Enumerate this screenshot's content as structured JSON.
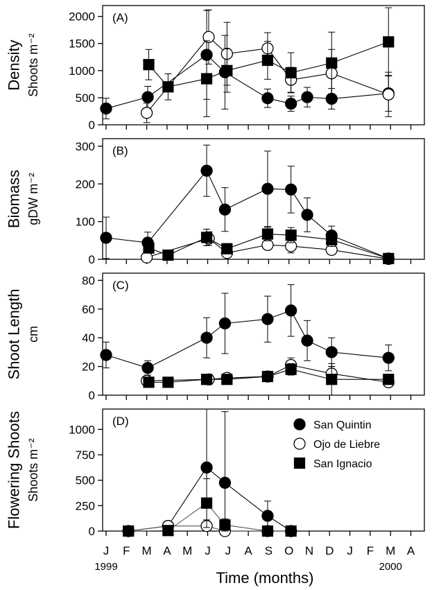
{
  "figure": {
    "xlabel": "Time (months)",
    "months": [
      "J",
      "F",
      "M",
      "A",
      "M",
      "J",
      "J",
      "A",
      "S",
      "O",
      "N",
      "D",
      "J",
      "F",
      "M",
      "A"
    ],
    "year_labels": [
      {
        "month_index": 0,
        "label": "1999"
      },
      {
        "month_index": 14,
        "label": "2000"
      }
    ],
    "legend": [
      {
        "label": "San Quintin",
        "marker": "filled-circle"
      },
      {
        "label": "Ojo de Liebre",
        "marker": "open-circle"
      },
      {
        "label": "San Ignacio",
        "marker": "filled-square"
      }
    ]
  },
  "chart_data": [
    {
      "type": "line",
      "panel_label": "(A)",
      "ylabel": "Density",
      "yunit": "Shoots m⁻²",
      "ylim": [
        0,
        2200
      ],
      "yticks": [
        0,
        500,
        1000,
        1500,
        2000
      ],
      "series": [
        {
          "name": "San Quintin",
          "points": [
            {
              "x": 0.0,
              "y": 300,
              "err": 190
            },
            {
              "x": 2.05,
              "y": 510,
              "err": 200
            },
            {
              "x": 4.95,
              "y": 1290,
              "err": 820
            },
            {
              "x": 5.85,
              "y": 970,
              "err": 680
            },
            {
              "x": 7.95,
              "y": 490,
              "err": 170
            },
            {
              "x": 9.1,
              "y": 390,
              "err": 140
            },
            {
              "x": 9.9,
              "y": 510,
              "err": 180
            },
            {
              "x": 11.1,
              "y": 480,
              "err": 190
            },
            {
              "x": 13.9,
              "y": 580,
              "err": 330
            }
          ]
        },
        {
          "name": "Ojo de Liebre",
          "points": [
            {
              "x": 2.0,
              "y": 220,
              "err": 180
            },
            {
              "x": 5.05,
              "y": 1620,
              "err": 500
            },
            {
              "x": 5.95,
              "y": 1310,
              "err": 580
            },
            {
              "x": 7.95,
              "y": 1410,
              "err": 290
            },
            {
              "x": 9.1,
              "y": 830,
              "err": 230
            },
            {
              "x": 11.1,
              "y": 950,
              "err": 440
            },
            {
              "x": 13.9,
              "y": 560,
              "err": 410
            }
          ]
        },
        {
          "name": "San Ignacio",
          "points": [
            {
              "x": 2.1,
              "y": 1110,
              "err": 280
            },
            {
              "x": 3.05,
              "y": 700,
              "err": 240
            },
            {
              "x": 4.95,
              "y": 850,
              "err": 700
            },
            {
              "x": 5.95,
              "y": 1000,
              "err": 400
            },
            {
              "x": 7.95,
              "y": 1190,
              "err": 350
            },
            {
              "x": 9.1,
              "y": 960,
              "err": 370
            },
            {
              "x": 11.1,
              "y": 1140,
              "err": 570
            },
            {
              "x": 13.9,
              "y": 1530,
              "err": 630
            }
          ]
        }
      ]
    },
    {
      "type": "line",
      "panel_label": "(B)",
      "ylabel": "Biomass",
      "yunit": "gDW m⁻²",
      "ylim": [
        0,
        320
      ],
      "yticks": [
        0,
        100,
        200,
        300
      ],
      "series": [
        {
          "name": "San Quintin",
          "points": [
            {
              "x": 0.0,
              "y": 57,
              "err": 55
            },
            {
              "x": 2.05,
              "y": 44,
              "err": 28
            },
            {
              "x": 4.95,
              "y": 235,
              "err": 68
            },
            {
              "x": 5.85,
              "y": 132,
              "err": 58
            },
            {
              "x": 7.95,
              "y": 187,
              "err": 100
            },
            {
              "x": 9.1,
              "y": 185,
              "err": 62
            },
            {
              "x": 9.9,
              "y": 118,
              "err": 45
            },
            {
              "x": 11.1,
              "y": 63,
              "err": 25
            },
            {
              "x": 13.9,
              "y": 2,
              "err": 4
            }
          ]
        },
        {
          "name": "Ojo de Liebre",
          "points": [
            {
              "x": 2.0,
              "y": 5,
              "err": 6
            },
            {
              "x": 5.05,
              "y": 55,
              "err": 18
            },
            {
              "x": 5.95,
              "y": 17,
              "err": 8
            },
            {
              "x": 7.95,
              "y": 38,
              "err": 12
            },
            {
              "x": 9.1,
              "y": 35,
              "err": 18
            },
            {
              "x": 11.1,
              "y": 25,
              "err": 10
            },
            {
              "x": 13.9,
              "y": 1,
              "err": 2
            }
          ]
        },
        {
          "name": "San Ignacio",
          "points": [
            {
              "x": 2.1,
              "y": 30,
              "err": 10
            },
            {
              "x": 3.05,
              "y": 11,
              "err": 4
            },
            {
              "x": 4.95,
              "y": 58,
              "err": 22
            },
            {
              "x": 5.95,
              "y": 28,
              "err": 10
            },
            {
              "x": 7.95,
              "y": 67,
              "err": 18
            },
            {
              "x": 9.1,
              "y": 64,
              "err": 20
            },
            {
              "x": 11.1,
              "y": 52,
              "err": 18
            },
            {
              "x": 13.9,
              "y": 2,
              "err": 3
            }
          ]
        }
      ]
    },
    {
      "type": "line",
      "panel_label": "(C)",
      "ylabel": "Shoot Length",
      "yunit": "cm",
      "ylim": [
        0,
        85
      ],
      "yticks": [
        0,
        20,
        40,
        60,
        80
      ],
      "series": [
        {
          "name": "San Quintin",
          "points": [
            {
              "x": 0.0,
              "y": 28,
              "err": 9
            },
            {
              "x": 2.05,
              "y": 19,
              "err": 5
            },
            {
              "x": 4.95,
              "y": 40,
              "err": 14
            },
            {
              "x": 5.85,
              "y": 50,
              "err": 21
            },
            {
              "x": 7.95,
              "y": 53,
              "err": 16
            },
            {
              "x": 9.1,
              "y": 59,
              "err": 18
            },
            {
              "x": 9.9,
              "y": 38,
              "err": 14
            },
            {
              "x": 11.1,
              "y": 30,
              "err": 10
            },
            {
              "x": 13.9,
              "y": 26,
              "err": 9
            }
          ]
        },
        {
          "name": "Ojo de Liebre",
          "points": [
            {
              "x": 2.0,
              "y": 10,
              "err": 2
            },
            {
              "x": 5.05,
              "y": 11,
              "err": 2
            },
            {
              "x": 5.95,
              "y": 12,
              "err": 2
            },
            {
              "x": 7.95,
              "y": 13,
              "err": 2
            },
            {
              "x": 9.1,
              "y": 21,
              "err": 5
            },
            {
              "x": 11.1,
              "y": 15,
              "err": 5
            },
            {
              "x": 13.9,
              "y": 9,
              "err": 2
            }
          ]
        },
        {
          "name": "San Ignacio",
          "points": [
            {
              "x": 2.1,
              "y": 9,
              "err": 2
            },
            {
              "x": 3.05,
              "y": 9,
              "err": 2
            },
            {
              "x": 4.95,
              "y": 11,
              "err": 2
            },
            {
              "x": 5.95,
              "y": 11,
              "err": 2
            },
            {
              "x": 7.95,
              "y": 13,
              "err": 2
            },
            {
              "x": 9.1,
              "y": 18,
              "err": 4
            },
            {
              "x": 11.1,
              "y": 11,
              "err": 11
            },
            {
              "x": 13.9,
              "y": 11,
              "err": 2
            }
          ]
        }
      ]
    },
    {
      "type": "line",
      "panel_label": "(D)",
      "ylabel": "Flowering Shoots",
      "yunit": "Shoots m⁻²",
      "ylim": [
        0,
        1200
      ],
      "yticks": [
        0,
        250,
        500,
        750,
        1000
      ],
      "series": [
        {
          "name": "San Quintin",
          "points": [
            {
              "x": 1.1,
              "y": 0,
              "err": 0
            },
            {
              "x": 3.05,
              "y": 50,
              "err": 20
            },
            {
              "x": 4.95,
              "y": 625,
              "err": 650
            },
            {
              "x": 5.85,
              "y": 475,
              "err": 700
            },
            {
              "x": 7.95,
              "y": 150,
              "err": 145
            },
            {
              "x": 9.1,
              "y": 0,
              "err": 0
            }
          ]
        },
        {
          "name": "Ojo de Liebre",
          "points": [
            {
              "x": 1.1,
              "y": 0,
              "err": 0
            },
            {
              "x": 3.05,
              "y": 50,
              "err": 20
            },
            {
              "x": 4.95,
              "y": 50,
              "err": 60
            },
            {
              "x": 5.85,
              "y": 0,
              "err": 0
            },
            {
              "x": 7.95,
              "y": 0,
              "err": 0
            },
            {
              "x": 9.1,
              "y": 0,
              "err": 0
            }
          ]
        },
        {
          "name": "San Ignacio",
          "points": [
            {
              "x": 1.1,
              "y": 0,
              "err": 0
            },
            {
              "x": 3.05,
              "y": 5,
              "err": 5
            },
            {
              "x": 4.95,
              "y": 275,
              "err": 240
            },
            {
              "x": 5.85,
              "y": 60,
              "err": 60
            },
            {
              "x": 7.95,
              "y": 0,
              "err": 0
            },
            {
              "x": 9.1,
              "y": 0,
              "err": 0
            }
          ]
        }
      ]
    }
  ]
}
